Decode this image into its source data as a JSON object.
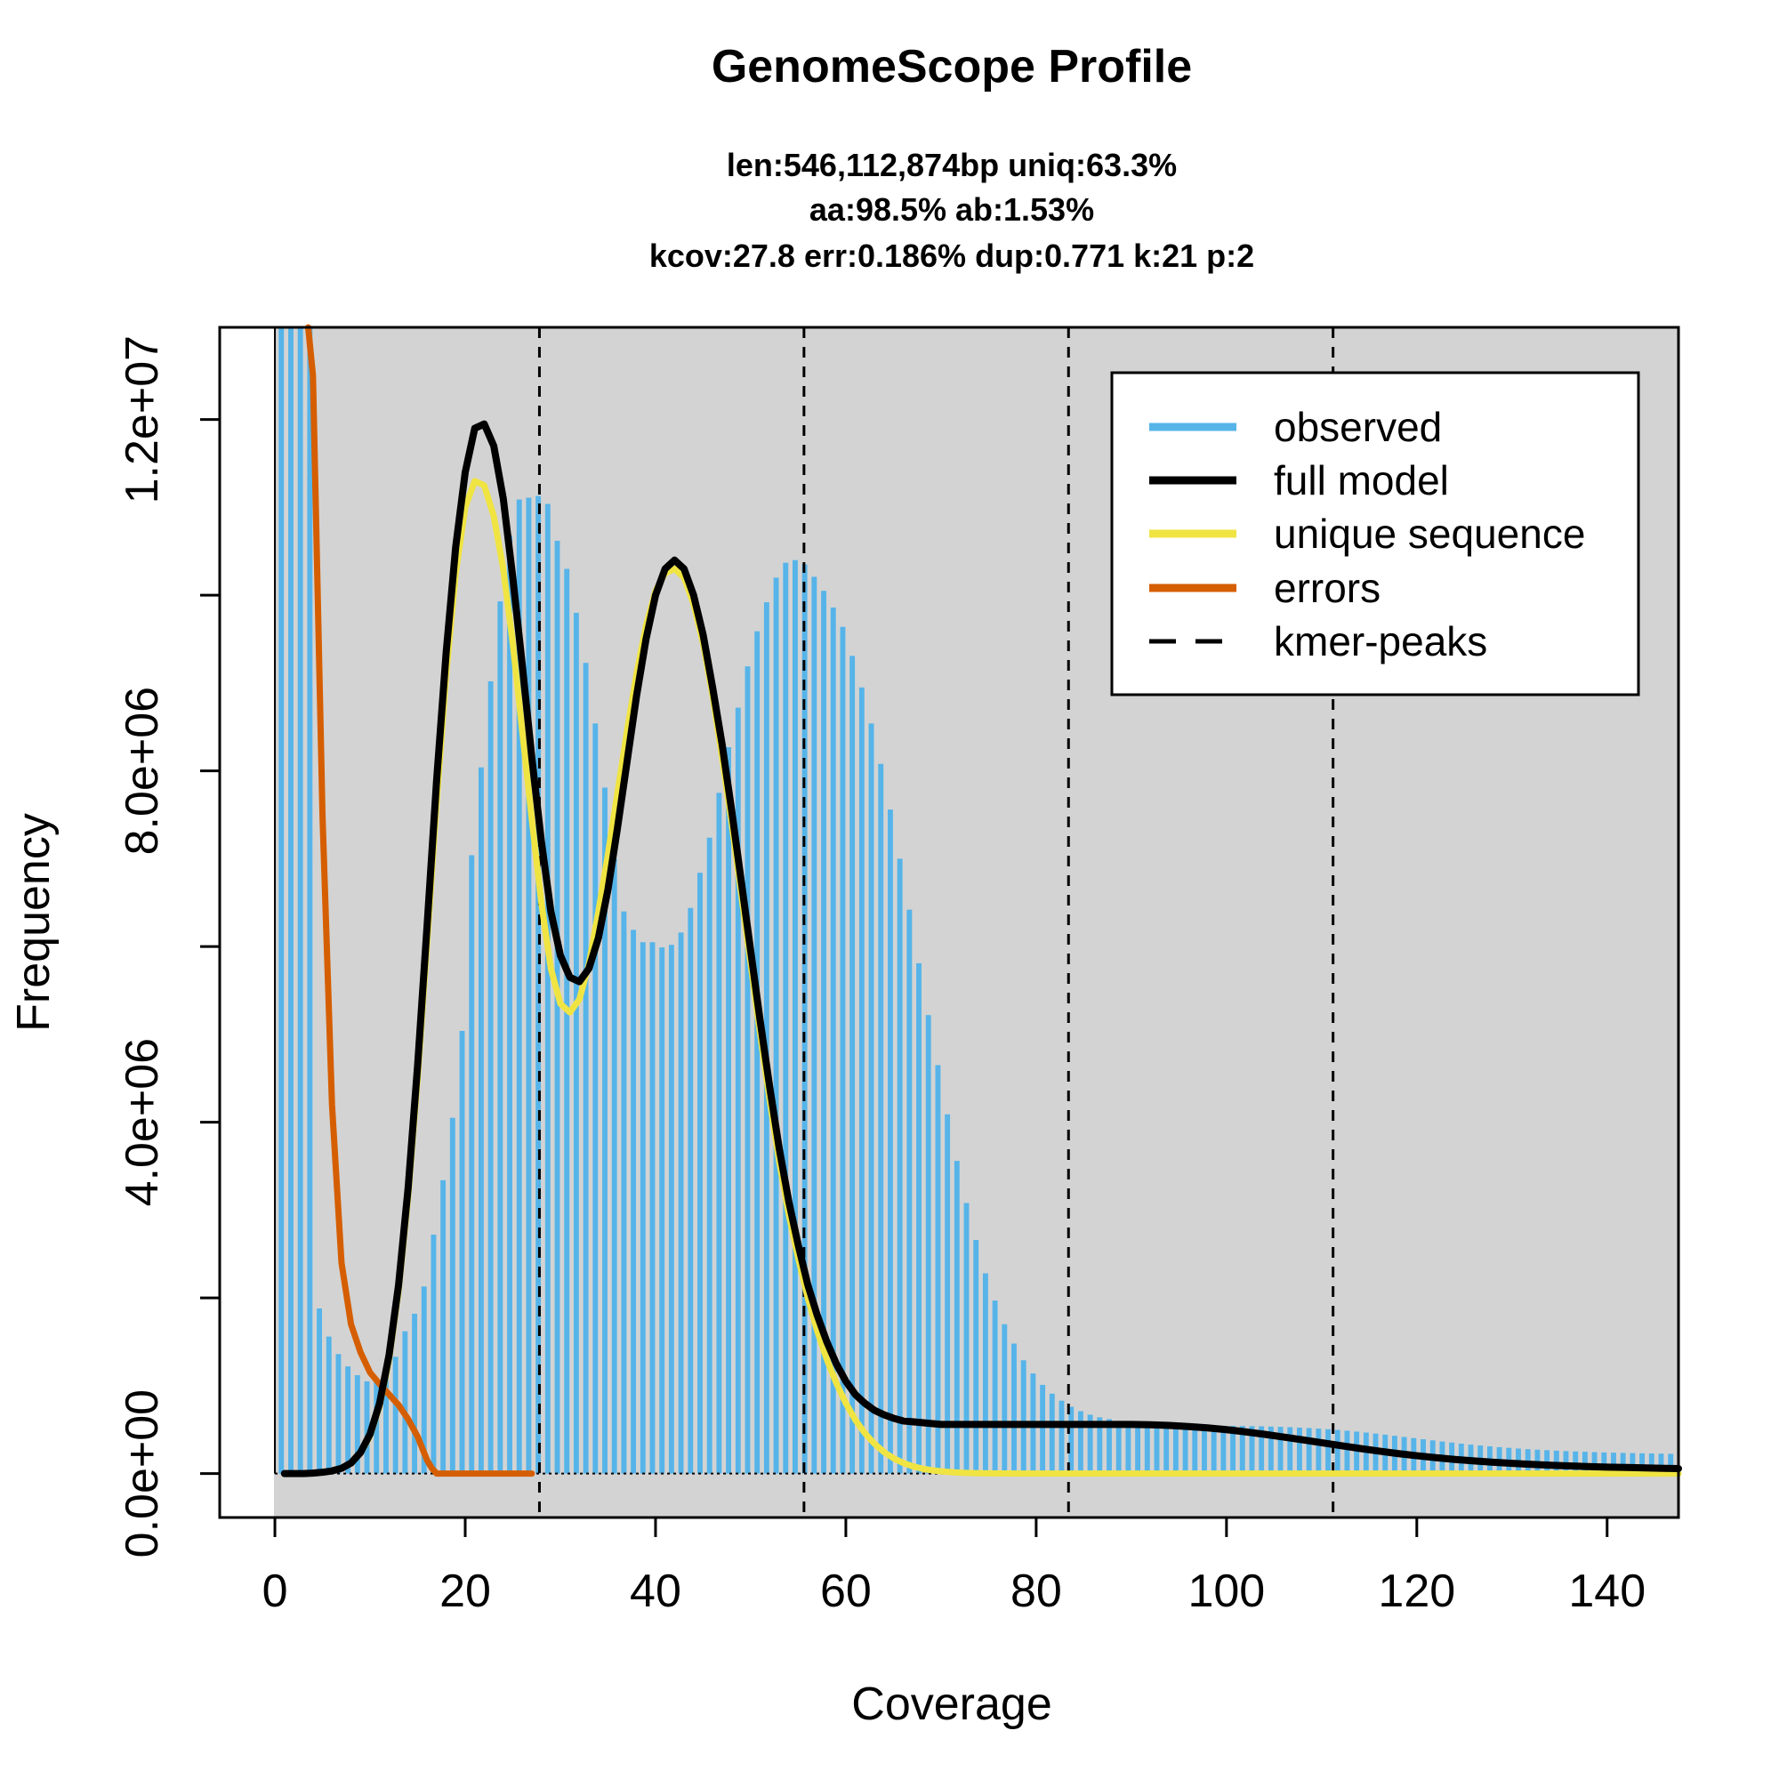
{
  "chart_data": {
    "type": "bar",
    "title": "GenomeScope Profile",
    "subtitle_lines": [
      "len:546,112,874bp uniq:63.3%",
      "aa:98.5% ab:1.53%",
      "kcov:27.8 err:0.186%  dup:0.771  k:21 p:2"
    ],
    "xlabel": "Coverage",
    "ylabel": "Frequency",
    "xlim": [
      -5.8,
      147.5
    ],
    "ylim": [
      -500000,
      13050000
    ],
    "xticks": [
      0,
      20,
      40,
      60,
      80,
      100,
      120,
      140
    ],
    "xtick_labels": [
      "0",
      "20",
      "40",
      "60",
      "80",
      "100",
      "120",
      "140"
    ],
    "yticks": [
      0,
      2000000,
      4000000,
      6000000,
      8000000,
      10000000,
      12000000
    ],
    "ytick_labels": [
      "0.0e+00",
      "",
      "4.0e+06",
      "",
      "8.0e+06",
      "",
      "1.2e+07"
    ],
    "grid": false,
    "background": "#d3d3d3",
    "legend_position": "top-right",
    "legend": [
      {
        "label": "observed",
        "color": "#56b4e9",
        "style": "solid"
      },
      {
        "label": "full model",
        "color": "#000000",
        "style": "solid"
      },
      {
        "label": "unique sequence",
        "color": "#f0e442",
        "style": "solid"
      },
      {
        "label": "errors",
        "color": "#d55e00",
        "style": "solid"
      },
      {
        "label": "kmer-peaks",
        "color": "#000000",
        "style": "dashed"
      }
    ],
    "kmer_peaks": [
      27.8,
      55.6,
      83.4,
      111.2
    ],
    "observed": {
      "name": "observed",
      "color": "#56b4e9",
      "x": [
        1,
        2,
        3,
        4,
        5,
        6,
        7,
        8,
        9,
        10,
        11,
        12,
        13,
        14,
        15,
        16,
        17,
        18,
        19,
        20,
        21,
        22,
        23,
        24,
        25,
        26,
        27,
        28,
        29,
        30,
        31,
        32,
        33,
        34,
        35,
        36,
        37,
        38,
        39,
        40,
        41,
        42,
        43,
        44,
        45,
        46,
        47,
        48,
        49,
        50,
        51,
        52,
        53,
        54,
        55,
        56,
        57,
        58,
        59,
        60,
        61,
        62,
        63,
        64,
        65,
        66,
        67,
        68,
        69,
        70,
        71,
        72,
        73,
        74,
        75,
        76,
        77,
        78,
        79,
        80,
        81,
        82,
        83,
        84,
        85,
        86,
        87,
        88,
        89,
        90,
        91,
        92,
        93,
        94,
        95,
        96,
        97,
        98,
        99,
        100,
        101,
        102,
        103,
        104,
        105,
        106,
        107,
        108,
        109,
        110,
        111,
        112,
        113,
        114,
        115,
        116,
        117,
        118,
        119,
        120,
        121,
        122,
        123,
        124,
        125,
        126,
        127,
        128,
        129,
        130,
        131,
        132,
        133,
        134,
        135,
        136,
        137,
        138,
        139,
        140,
        141,
        142,
        143,
        144,
        145,
        146,
        147
      ],
      "values": [
        13050000,
        13050000,
        13050000,
        13050000,
        1880000,
        1560000,
        1360000,
        1220000,
        1120000,
        1050000,
        1070000,
        1150000,
        1330000,
        1620000,
        1820000,
        2130000,
        2720000,
        3340000,
        4050000,
        5040000,
        7040000,
        8040000,
        9020000,
        9930000,
        10680000,
        11090000,
        11110000,
        11130000,
        11040000,
        10620000,
        10300000,
        9800000,
        9230000,
        8540000,
        7810000,
        7000000,
        6400000,
        6190000,
        6050000,
        6050000,
        5990000,
        6020000,
        6160000,
        6440000,
        6840000,
        7240000,
        7750000,
        8270000,
        8720000,
        9190000,
        9590000,
        9920000,
        10200000,
        10370000,
        10400000,
        10350000,
        10210000,
        10050000,
        9860000,
        9640000,
        9310000,
        8950000,
        8540000,
        8080000,
        7560000,
        7000000,
        6420000,
        5810000,
        5220000,
        4650000,
        4090000,
        3560000,
        3080000,
        2660000,
        2280000,
        1970000,
        1700000,
        1480000,
        1290000,
        1140000,
        1010000,
        910000,
        830000,
        760000,
        710000,
        670000,
        640000,
        620000,
        600000,
        590000,
        580000,
        570000,
        565000,
        560000,
        555000,
        550000,
        548000,
        546000,
        545000,
        544000,
        543000,
        542000,
        540000,
        538000,
        535000,
        532000,
        528000,
        523000,
        518000,
        512000,
        505000,
        497000,
        488000,
        478000,
        467000,
        455000,
        443000,
        430000,
        417000,
        404000,
        391000,
        378000,
        365000,
        353000,
        341000,
        330000,
        320000,
        310000,
        301000,
        293000,
        285000,
        278000,
        272000,
        266000,
        261000,
        256000,
        252000,
        248000,
        244000,
        241000,
        238000,
        235000,
        233000,
        231000,
        229000,
        227000,
        225000
      ]
    },
    "full_model": {
      "name": "full model",
      "color": "#000000",
      "x": [
        1,
        2,
        3,
        4,
        5,
        6,
        7,
        8,
        9,
        10,
        11,
        12,
        13,
        14,
        15,
        16,
        17,
        18,
        19,
        20,
        21,
        22,
        23,
        24,
        25,
        26,
        27,
        28,
        29,
        30,
        31,
        32,
        33,
        34,
        35,
        36,
        37,
        38,
        39,
        40,
        41,
        42,
        43,
        44,
        45,
        46,
        47,
        48,
        49,
        50,
        51,
        52,
        53,
        54,
        55,
        56,
        57,
        58,
        59,
        60,
        61,
        62,
        63,
        64,
        65,
        66,
        67,
        68,
        69,
        70,
        71,
        72,
        73,
        74,
        75,
        76,
        77,
        78,
        79,
        80,
        81,
        82,
        83,
        84,
        85,
        86,
        87,
        88,
        89,
        90,
        92,
        94,
        96,
        98,
        100,
        102,
        104,
        106,
        108,
        110,
        112,
        114,
        116,
        118,
        120,
        122,
        124,
        126,
        128,
        130,
        132,
        134,
        136,
        138,
        140,
        142,
        144,
        146,
        147.5
      ],
      "values": [
        0,
        0,
        0,
        5000,
        15000,
        30000,
        60000,
        120000,
        240000,
        450000,
        800000,
        1350000,
        2150000,
        3250000,
        4650000,
        6250000,
        7900000,
        9350000,
        10550000,
        11400000,
        11900000,
        11950000,
        11700000,
        11100000,
        10200000,
        9200000,
        8150000,
        7200000,
        6400000,
        5900000,
        5650000,
        5600000,
        5750000,
        6100000,
        6650000,
        7350000,
        8100000,
        8850000,
        9500000,
        10000000,
        10300000,
        10400000,
        10300000,
        10000000,
        9550000,
        8950000,
        8300000,
        7550000,
        6750000,
        5950000,
        5150000,
        4400000,
        3700000,
        3100000,
        2600000,
        2150000,
        1800000,
        1500000,
        1250000,
        1050000,
        900000,
        800000,
        720000,
        670000,
        630000,
        600000,
        590000,
        580000,
        570000,
        560000,
        560000,
        560000,
        560000,
        560000,
        560000,
        560000,
        560000,
        560000,
        560000,
        560000,
        560000,
        560000,
        560000,
        560000,
        560000,
        560000,
        560000,
        560000,
        560000,
        560000,
        556000,
        548000,
        536000,
        520000,
        500000,
        475000,
        447000,
        416000,
        384000,
        351000,
        318000,
        286000,
        256000,
        228000,
        203000,
        181000,
        161000,
        144000,
        129000,
        116000,
        105000,
        95000,
        87000,
        80000,
        74000,
        69000,
        64000,
        60000,
        57000
      ]
    },
    "unique_sequence": {
      "name": "unique sequence",
      "color": "#f0e442",
      "x": [
        1,
        2,
        3,
        4,
        5,
        6,
        7,
        8,
        9,
        10,
        11,
        12,
        13,
        14,
        15,
        16,
        17,
        18,
        19,
        20,
        21,
        22,
        23,
        24,
        25,
        26,
        27,
        28,
        29,
        30,
        31,
        32,
        33,
        34,
        35,
        36,
        37,
        38,
        39,
        40,
        41,
        42,
        43,
        44,
        45,
        46,
        47,
        48,
        49,
        50,
        51,
        52,
        53,
        54,
        55,
        56,
        57,
        58,
        59,
        60,
        61,
        62,
        63,
        64,
        65,
        66,
        67,
        68,
        69,
        70,
        71,
        72,
        73,
        74,
        75,
        76,
        77,
        78,
        79,
        80,
        81,
        82,
        83,
        84,
        85,
        86,
        87,
        88,
        89,
        90,
        92,
        94,
        96,
        98,
        100,
        105,
        110,
        115,
        120,
        125,
        130,
        135,
        140,
        147.5
      ],
      "values": [
        0,
        0,
        0,
        5000,
        15000,
        30000,
        60000,
        120000,
        230000,
        430000,
        770000,
        1300000,
        2080000,
        3150000,
        4500000,
        6050000,
        7650000,
        9100000,
        10250000,
        11000000,
        11300000,
        11250000,
        10900000,
        10300000,
        9450000,
        8450000,
        7450000,
        6500000,
        5750000,
        5350000,
        5250000,
        5400000,
        5800000,
        6400000,
        7050000,
        7750000,
        8450000,
        9100000,
        9650000,
        10050000,
        10250000,
        10300000,
        10200000,
        9900000,
        9450000,
        8850000,
        8150000,
        7400000,
        6600000,
        5800000,
        5000000,
        4250000,
        3550000,
        2950000,
        2450000,
        2000000,
        1620000,
        1300000,
        1030000,
        800000,
        610000,
        460000,
        340000,
        245000,
        175000,
        122000,
        84000,
        57000,
        38000,
        25000,
        16000,
        10000,
        6000,
        4000,
        2500,
        1500,
        1000,
        500,
        300,
        200,
        100,
        50,
        0,
        0,
        0,
        0,
        0,
        0,
        0,
        0,
        0,
        0,
        0,
        0,
        0,
        0,
        0,
        0,
        0,
        0,
        0,
        0,
        0,
        0
      ]
    },
    "errors": {
      "name": "errors",
      "color": "#d55e00",
      "x": [
        3.5,
        4,
        5,
        6,
        7,
        8,
        9,
        10,
        11,
        12,
        13,
        14,
        15,
        16,
        16.5,
        17,
        18,
        20,
        22,
        24,
        26,
        27
      ],
      "values": [
        13050000,
        12500000,
        7500000,
        4200000,
        2400000,
        1700000,
        1380000,
        1150000,
        1020000,
        900000,
        780000,
        620000,
        420000,
        150000,
        60000,
        0,
        0,
        0,
        0,
        0,
        0,
        0
      ]
    },
    "error_curve_start_above_frame": true
  }
}
